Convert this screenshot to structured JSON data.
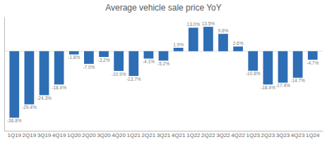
{
  "chart_data": {
    "type": "bar",
    "title": "Average vehicle sale price YoY",
    "categories": [
      "1Q19",
      "2Q19",
      "3Q19",
      "4Q19",
      "1Q20",
      "2Q20",
      "3Q20",
      "4Q20",
      "1Q21",
      "2Q21",
      "3Q21",
      "4Q21",
      "1Q22",
      "2Q22",
      "3Q22",
      "4Q22",
      "1Q23",
      "2Q23",
      "3Q23",
      "4Q23",
      "1Q24"
    ],
    "values": [
      -36.8,
      -29.4,
      -24.3,
      -18.4,
      -1.8,
      -7.0,
      -3.2,
      -10.9,
      -13.7,
      -4.1,
      -5.2,
      1.9,
      13.0,
      13.5,
      9.6,
      2.6,
      -10.8,
      -18.4,
      -17.4,
      -14.7,
      -4.7
    ],
    "value_labels": [
      "-36.8%",
      "-29.4%",
      "-24.3%",
      "-18.4%",
      "-1.8%",
      "-7.0%",
      "-3.2%",
      "-10.9%",
      "-13.7%",
      "-4.1%",
      "-5.2%",
      "1.9%",
      "13.0%",
      "13.5%",
      "9.6%",
      "2.6%",
      "-10.8%",
      "-18.4%",
      "-17.4%",
      "-14.7%",
      "-4.7%"
    ],
    "color": "#2e6eb5",
    "ylim": [
      -44,
      19
    ],
    "data_labels": true,
    "tick_labels": "x",
    "grid": false
  }
}
